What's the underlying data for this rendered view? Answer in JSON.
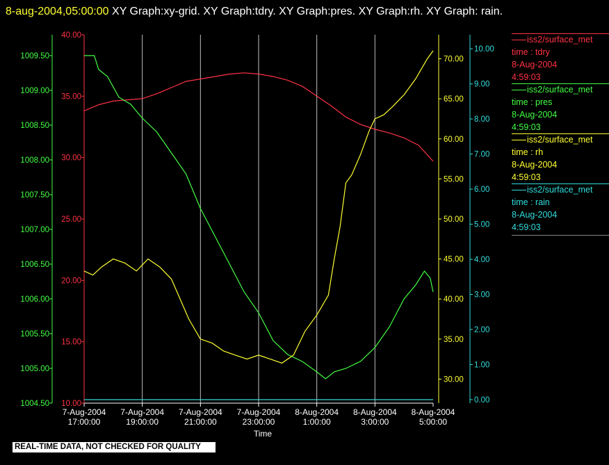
{
  "header": {
    "timestamp": "8-aug-2004,05:00:00",
    "title_rest": "XY Graph:xy-grid.  XY Graph:tdry.  XY Graph:pres.  XY Graph:rh.  XY Graph: rain."
  },
  "disclaimer": "REAL-TIME DATA, NOT CHECKED FOR QUALITY",
  "colors": {
    "tdry": "#ff3344",
    "pres": "#44ff44",
    "rh": "#ffff33",
    "rain": "#33dddd",
    "grid": "#ffffff",
    "axis_text": "#ffffff"
  },
  "legend": [
    {
      "name": "iss2/surface_met",
      "var": "time : tdry",
      "date": "8-Aug-2004",
      "time": "4:59:03",
      "color": "#ff3344"
    },
    {
      "name": "iss2/surface_met",
      "var": "time : pres",
      "date": "8-Aug-2004",
      "time": "4:59:03",
      "color": "#44ff44"
    },
    {
      "name": "iss2/surface_met",
      "var": "time : rh",
      "date": "8-Aug-2004",
      "time": "4:59:03",
      "color": "#ffff33"
    },
    {
      "name": "iss2/surface_met",
      "var": "time : rain",
      "date": "8-Aug-2004",
      "time": "4:59:03",
      "color": "#33dddd"
    }
  ],
  "chart_data": {
    "type": "line",
    "title": "",
    "xlabel": "Time",
    "x_range_hours": [
      17.0,
      29.0
    ],
    "x_ticks": [
      {
        "x": 17,
        "date": "7-Aug-2004",
        "time": "17:00:00"
      },
      {
        "x": 19,
        "date": "7-Aug-2004",
        "time": "19:00:00"
      },
      {
        "x": 21,
        "date": "7-Aug-2004",
        "time": "21:00:00"
      },
      {
        "x": 23,
        "date": "7-Aug-2004",
        "time": "23:00:00"
      },
      {
        "x": 25,
        "date": "8-Aug-2004",
        "time": "1:00:00"
      },
      {
        "x": 27,
        "date": "8-Aug-2004",
        "time": "3:00:00"
      },
      {
        "x": 29,
        "date": "8-Aug-2004",
        "time": "5:00:00"
      }
    ],
    "grid": true,
    "axes": {
      "pres": {
        "ylim": [
          1004.5,
          1009.8
        ],
        "ticks": [
          "1004.50",
          "1005.00",
          "1005.50",
          "1006.00",
          "1006.50",
          "1007.00",
          "1007.50",
          "1008.00",
          "1008.50",
          "1009.00",
          "1009.50"
        ]
      },
      "tdry": {
        "ylim": [
          10.0,
          40.0
        ],
        "ticks": [
          "10.00",
          "15.00",
          "20.00",
          "25.00",
          "30.00",
          "35.00",
          "40.00"
        ]
      },
      "rh": {
        "ylim": [
          27.0,
          73.0
        ],
        "ticks": [
          "30.00",
          "35.00",
          "40.00",
          "45.00",
          "50.00",
          "55.00",
          "60.00",
          "65.00",
          "70.00"
        ]
      },
      "rain": {
        "ylim": [
          -0.1,
          10.4
        ],
        "ticks": [
          "0.00",
          "1.00",
          "2.00",
          "3.00",
          "4.00",
          "5.00",
          "6.00",
          "7.00",
          "8.00",
          "9.00",
          "10.00"
        ]
      }
    },
    "series": [
      {
        "name": "tdry",
        "axis": "tdry",
        "x": [
          17.0,
          17.5,
          18.0,
          18.5,
          19.0,
          19.5,
          20.0,
          20.5,
          21.0,
          21.5,
          22.0,
          22.5,
          23.0,
          23.5,
          24.0,
          24.5,
          25.0,
          25.5,
          26.0,
          26.5,
          27.0,
          27.5,
          28.0,
          28.5,
          29.0
        ],
        "values": [
          33.8,
          34.3,
          34.6,
          34.7,
          34.8,
          35.2,
          35.7,
          36.2,
          36.4,
          36.6,
          36.8,
          36.9,
          36.8,
          36.6,
          36.3,
          35.8,
          35.0,
          34.2,
          33.3,
          32.7,
          32.3,
          32.0,
          31.6,
          31.0,
          29.7
        ]
      },
      {
        "name": "pres",
        "axis": "pres",
        "x": [
          17.0,
          17.35,
          17.5,
          17.8,
          18.2,
          18.6,
          19.0,
          19.5,
          20.0,
          20.5,
          21.0,
          21.5,
          22.0,
          22.5,
          23.0,
          23.5,
          24.0,
          24.5,
          25.0,
          25.3,
          25.6,
          26.0,
          26.5,
          27.0,
          27.5,
          28.0,
          28.4,
          28.7,
          28.9,
          29.0
        ],
        "values": [
          1009.5,
          1009.5,
          1009.3,
          1009.2,
          1008.9,
          1008.8,
          1008.6,
          1008.4,
          1008.1,
          1007.8,
          1007.3,
          1006.9,
          1006.5,
          1006.1,
          1005.8,
          1005.4,
          1005.2,
          1005.1,
          1004.95,
          1004.85,
          1004.95,
          1005.0,
          1005.1,
          1005.3,
          1005.6,
          1006.0,
          1006.2,
          1006.4,
          1006.3,
          1006.1
        ]
      },
      {
        "name": "rh",
        "axis": "rh",
        "x": [
          17.0,
          17.3,
          17.6,
          18.0,
          18.4,
          18.8,
          19.2,
          19.6,
          20.0,
          20.3,
          20.6,
          21.0,
          21.4,
          21.8,
          22.2,
          22.6,
          23.0,
          23.4,
          23.8,
          24.2,
          24.6,
          25.0,
          25.4,
          25.6,
          25.8,
          26.0,
          26.2,
          26.5,
          26.8,
          27.0,
          27.3,
          27.6,
          28.0,
          28.4,
          28.8,
          29.0
        ],
        "values": [
          43.5,
          43.0,
          44.0,
          45.0,
          44.5,
          43.5,
          45.0,
          44.0,
          42.5,
          40.0,
          37.5,
          35.0,
          34.5,
          33.5,
          33.0,
          32.5,
          33.0,
          32.5,
          32.0,
          33.0,
          36.0,
          38.0,
          40.5,
          45.0,
          49.0,
          54.5,
          55.5,
          58.0,
          61.0,
          62.5,
          63.0,
          64.0,
          65.5,
          67.5,
          70.0,
          71.0
        ]
      },
      {
        "name": "rain",
        "axis": "rain",
        "x": [
          17.0,
          29.0
        ],
        "values": [
          0.0,
          0.0
        ]
      }
    ]
  }
}
